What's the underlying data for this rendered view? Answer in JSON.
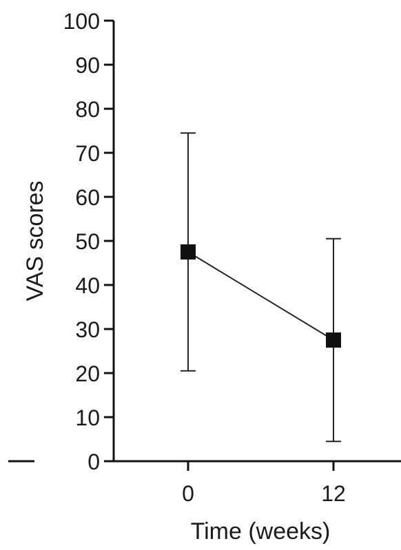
{
  "chart_data": {
    "type": "line",
    "title": "",
    "xlabel": "Time (weeks)",
    "ylabel": "VAS scores",
    "categories": [
      "0",
      "12"
    ],
    "ylim": [
      0,
      100
    ],
    "yticks": [
      "0",
      "10",
      "20",
      "30",
      "40",
      "50",
      "60",
      "70",
      "80",
      "90",
      "100"
    ],
    "grid": false,
    "legend": "none",
    "series": [
      {
        "values": [
          47.5,
          27.5
        ],
        "error_low": [
          20.5,
          4.5
        ],
        "error_high": [
          74.5,
          50.5
        ],
        "marker": "square",
        "color": "#111111"
      }
    ]
  }
}
